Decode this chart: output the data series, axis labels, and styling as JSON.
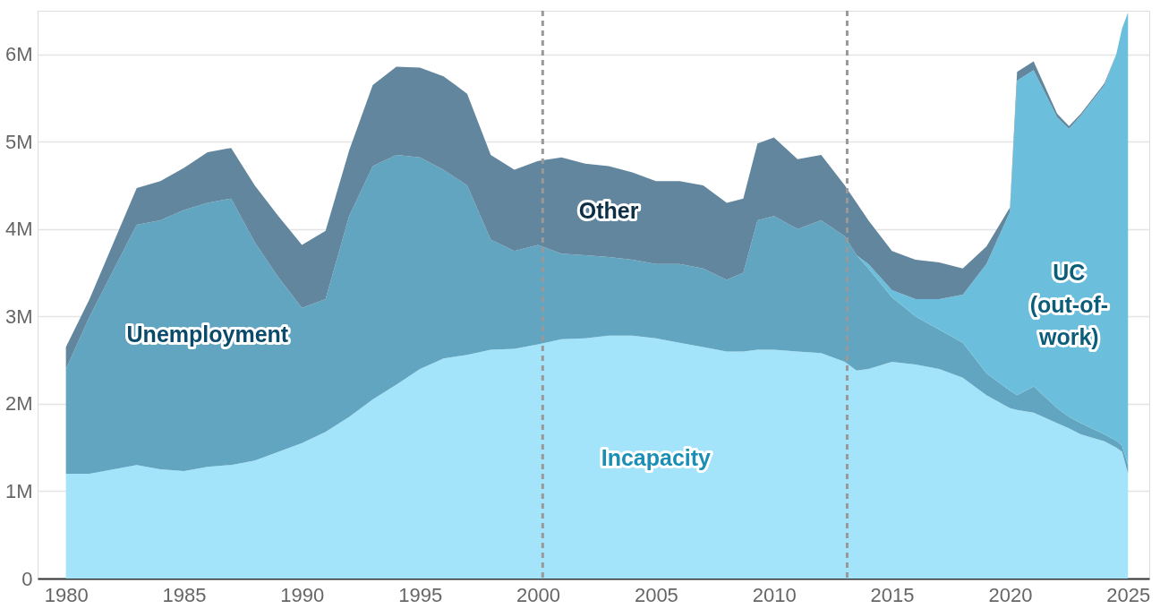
{
  "chart_data": {
    "type": "area",
    "stacked": true,
    "x": [
      1980,
      1981,
      1983,
      1984,
      1985,
      1986,
      1987,
      1988,
      1989,
      1990,
      1991,
      1992,
      1993,
      1994,
      1995,
      1996,
      1997,
      1998,
      1999,
      2000,
      2001,
      2002,
      2003,
      2004,
      2005,
      2006,
      2007,
      2008,
      2008.7,
      2009.3,
      2010,
      2011,
      2012,
      2013,
      2013.5,
      2014,
      2015,
      2016,
      2017,
      2018,
      2019,
      2020,
      2020.3,
      2021,
      2022,
      2022.5,
      2023,
      2024,
      2024.5,
      2024.75,
      2025
    ],
    "series": [
      {
        "name": "Incapacity",
        "color": "#a3e4fa",
        "values": [
          1.2,
          1.2,
          1.3,
          1.25,
          1.23,
          1.28,
          1.3,
          1.35,
          1.45,
          1.55,
          1.68,
          1.85,
          2.05,
          2.22,
          2.4,
          2.52,
          2.56,
          2.62,
          2.63,
          2.68,
          2.74,
          2.75,
          2.78,
          2.78,
          2.75,
          2.7,
          2.65,
          2.6,
          2.6,
          2.62,
          2.62,
          2.6,
          2.58,
          2.48,
          2.38,
          2.4,
          2.48,
          2.45,
          2.4,
          2.3,
          2.1,
          1.95,
          1.93,
          1.9,
          1.78,
          1.72,
          1.65,
          1.57,
          1.5,
          1.45,
          1.2
        ]
      },
      {
        "name": "Unemployment",
        "color": "#62a5c1",
        "values": [
          1.2,
          1.8,
          2.75,
          2.85,
          2.99,
          3.02,
          3.05,
          2.5,
          2.0,
          1.55,
          1.52,
          2.3,
          2.67,
          2.63,
          2.42,
          2.16,
          1.94,
          1.26,
          1.12,
          1.14,
          0.98,
          0.95,
          0.9,
          0.87,
          0.85,
          0.9,
          0.9,
          0.82,
          0.9,
          1.48,
          1.53,
          1.4,
          1.52,
          1.44,
          1.32,
          1.15,
          0.74,
          0.55,
          0.45,
          0.4,
          0.25,
          0.2,
          0.17,
          0.3,
          0.17,
          0.13,
          0.13,
          0.08,
          0.08,
          0.07,
          0.1
        ]
      },
      {
        "name": "UC (out-of-work)",
        "color": "#6cbfdc",
        "values": [
          0,
          0,
          0,
          0,
          0,
          0,
          0,
          0,
          0,
          0,
          0,
          0,
          0,
          0,
          0,
          0,
          0,
          0,
          0,
          0,
          0,
          0,
          0,
          0,
          0,
          0,
          0,
          0,
          0,
          0,
          0,
          0,
          0,
          0,
          0,
          0.05,
          0.08,
          0.2,
          0.35,
          0.55,
          1.25,
          2.05,
          3.6,
          3.62,
          3.33,
          3.3,
          3.52,
          4.0,
          4.42,
          4.78,
          5.18
        ]
      },
      {
        "name": "Other",
        "color": "#62869e",
        "values": [
          0.25,
          0.2,
          0.42,
          0.45,
          0.48,
          0.58,
          0.58,
          0.65,
          0.7,
          0.72,
          0.78,
          0.75,
          0.93,
          1.01,
          1.03,
          1.07,
          1.05,
          0.97,
          0.93,
          0.96,
          1.1,
          1.05,
          1.04,
          1.0,
          0.95,
          0.95,
          0.95,
          0.88,
          0.85,
          0.88,
          0.9,
          0.8,
          0.75,
          0.58,
          0.6,
          0.5,
          0.45,
          0.45,
          0.42,
          0.3,
          0.2,
          0.05,
          0.1,
          0.1,
          0.04,
          0.03,
          0.02,
          0.02,
          0,
          0,
          0
        ]
      }
    ],
    "xlim": [
      1978.8,
      2025.9
    ],
    "xticks": [
      1980,
      1985,
      1990,
      1995,
      2000,
      2005,
      2010,
      2015,
      2020,
      2025
    ],
    "ylim": [
      0,
      6.5
    ],
    "yticks": [
      {
        "value": 0,
        "label": "0"
      },
      {
        "value": 1,
        "label": "1M"
      },
      {
        "value": 2,
        "label": "2M"
      },
      {
        "value": 3,
        "label": "3M"
      },
      {
        "value": 4,
        "label": "4M"
      },
      {
        "value": 5,
        "label": "5M"
      },
      {
        "value": 6,
        "label": "6M"
      }
    ],
    "ref_lines": [
      {
        "axis": "x",
        "value": 2000.2,
        "color": "#999999",
        "line_style": "dashed"
      },
      {
        "axis": "x",
        "value": 2013.1,
        "color": "#999999",
        "line_style": "dashed"
      }
    ],
    "grid": "y",
    "legend": false
  }
}
